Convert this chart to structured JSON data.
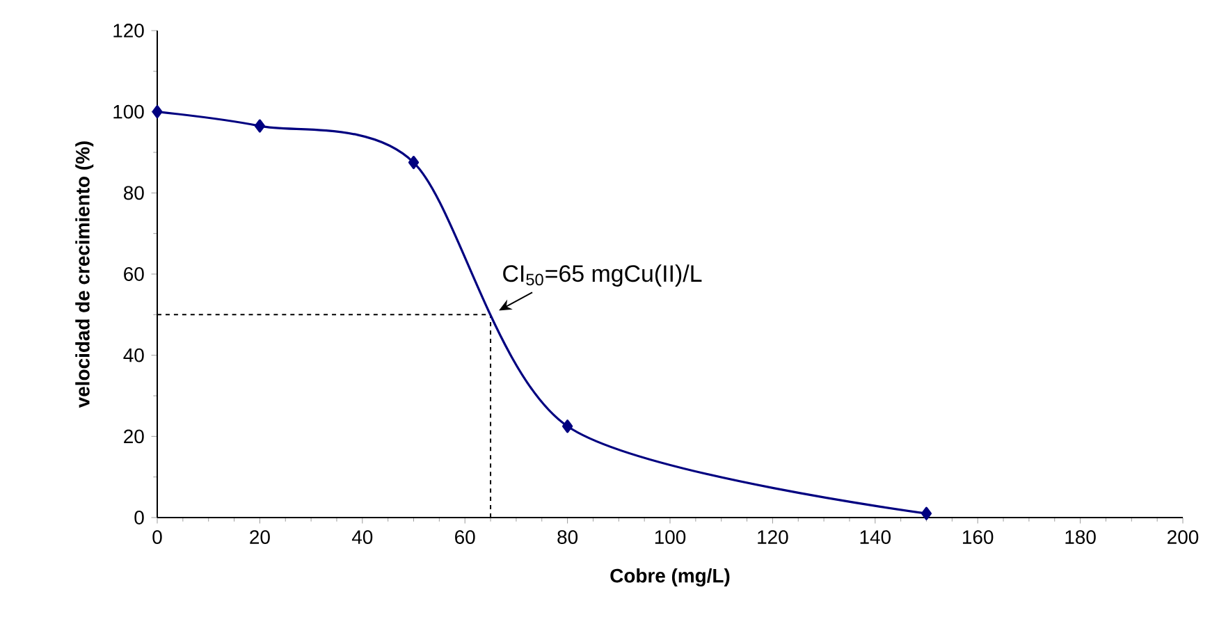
{
  "chart_data": {
    "type": "line",
    "xlabel": "Cobre (mg/L)",
    "ylabel": "velocidad de crecimiento (%)",
    "x": [
      0,
      20,
      50,
      80,
      150
    ],
    "series": [
      {
        "color": "#000080",
        "values": [
          100,
          96.5,
          87.5,
          22.5,
          1
        ]
      }
    ],
    "xlim": [
      0,
      200
    ],
    "xticks": [
      0,
      20,
      40,
      60,
      80,
      100,
      120,
      140,
      160,
      180,
      200
    ],
    "ylim": [
      0,
      120
    ],
    "yticks": [
      0,
      20,
      40,
      60,
      80,
      100,
      120
    ],
    "marker": "diamond",
    "ref_lines": [
      {
        "axis": "y",
        "value": 50,
        "color": "#000000",
        "line_style": "dashed"
      },
      {
        "axis": "x",
        "value": 65,
        "color": "#000000",
        "line_style": "dashed"
      }
    ],
    "annotations": [
      {
        "text": "CI$_{50}$=65 mgCu(II)/L",
        "x": 65,
        "y": 50
      }
    ]
  }
}
